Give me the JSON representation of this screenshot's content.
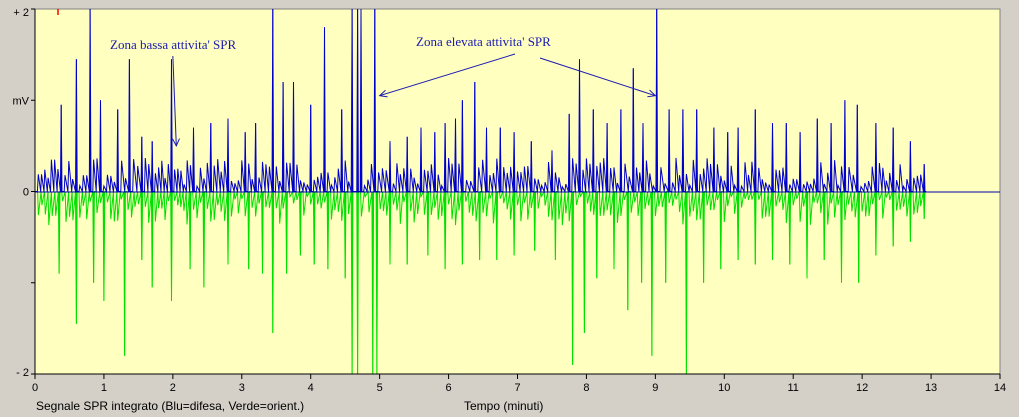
{
  "colors": {
    "window_bg": "#d4d0c8",
    "plot_bg": "#ffffc0",
    "blue_series": "#0000cc",
    "green_series": "#00e000",
    "annotation": "#1a1ab0",
    "axis": "#000000",
    "zero_line": "#0000aa",
    "marker": "#ff0000"
  },
  "footer": {
    "caption": "Segnale SPR integrato (Blu=difesa, Verde=orient.)"
  },
  "chart_data": {
    "type": "line",
    "xlabel": "Tempo (minuti)",
    "ylabel": "mV",
    "xlim": [
      0,
      14
    ],
    "ylim": [
      -2,
      2
    ],
    "x_ticks": [
      0,
      1,
      2,
      3,
      4,
      5,
      6,
      7,
      8,
      9,
      10,
      11,
      12,
      13,
      14
    ],
    "y_tick_labels": [
      {
        "value": 2,
        "label": "+ 2"
      },
      {
        "value": 1,
        "label": "mV"
      },
      {
        "value": 0,
        "label": "0"
      },
      {
        "value": -2,
        "label": "- 2"
      }
    ],
    "grid": false,
    "series": [
      {
        "name": "Blu=difesa",
        "color": "#0000cc",
        "direction": "positive",
        "x_range": [
          0,
          12.93
        ],
        "peaks": [
          {
            "x": 0.38,
            "y": 0.95
          },
          {
            "x": 0.6,
            "y": 1.45
          },
          {
            "x": 0.8,
            "y": 2.0
          },
          {
            "x": 0.95,
            "y": 1.0
          },
          {
            "x": 1.2,
            "y": 0.9
          },
          {
            "x": 1.37,
            "y": 1.45
          },
          {
            "x": 1.55,
            "y": 0.6
          },
          {
            "x": 1.7,
            "y": 0.55
          },
          {
            "x": 1.98,
            "y": 1.45
          },
          {
            "x": 2.3,
            "y": 0.7
          },
          {
            "x": 2.55,
            "y": 0.75
          },
          {
            "x": 2.8,
            "y": 0.8
          },
          {
            "x": 3.05,
            "y": 0.65
          },
          {
            "x": 3.2,
            "y": 0.75
          },
          {
            "x": 3.45,
            "y": 2.0
          },
          {
            "x": 3.6,
            "y": 1.2
          },
          {
            "x": 3.75,
            "y": 1.2
          },
          {
            "x": 4.0,
            "y": 0.95
          },
          {
            "x": 4.2,
            "y": 1.8
          },
          {
            "x": 4.45,
            "y": 0.9
          },
          {
            "x": 4.6,
            "y": 2.0
          },
          {
            "x": 4.68,
            "y": 2.0
          },
          {
            "x": 4.73,
            "y": 2.0
          },
          {
            "x": 4.93,
            "y": 2.0
          },
          {
            "x": 5.15,
            "y": 0.55
          },
          {
            "x": 5.4,
            "y": 0.6
          },
          {
            "x": 5.6,
            "y": 0.7
          },
          {
            "x": 5.8,
            "y": 0.65
          },
          {
            "x": 5.95,
            "y": 0.75
          },
          {
            "x": 6.1,
            "y": 0.8
          },
          {
            "x": 6.2,
            "y": 1.0
          },
          {
            "x": 6.38,
            "y": 1.2
          },
          {
            "x": 6.55,
            "y": 0.7
          },
          {
            "x": 6.75,
            "y": 0.7
          },
          {
            "x": 6.95,
            "y": 0.65
          },
          {
            "x": 7.2,
            "y": 0.55
          },
          {
            "x": 7.5,
            "y": 0.45
          },
          {
            "x": 7.75,
            "y": 0.85
          },
          {
            "x": 7.9,
            "y": 1.45
          },
          {
            "x": 8.1,
            "y": 0.9
          },
          {
            "x": 8.3,
            "y": 0.75
          },
          {
            "x": 8.5,
            "y": 0.9
          },
          {
            "x": 8.68,
            "y": 1.35
          },
          {
            "x": 8.82,
            "y": 0.75
          },
          {
            "x": 9.02,
            "y": 2.0
          },
          {
            "x": 9.2,
            "y": 0.9
          },
          {
            "x": 9.4,
            "y": 0.9
          },
          {
            "x": 9.6,
            "y": 0.9
          },
          {
            "x": 9.85,
            "y": 0.7
          },
          {
            "x": 10.05,
            "y": 0.65
          },
          {
            "x": 10.2,
            "y": 0.7
          },
          {
            "x": 10.45,
            "y": 0.9
          },
          {
            "x": 10.7,
            "y": 0.75
          },
          {
            "x": 10.9,
            "y": 0.75
          },
          {
            "x": 11.1,
            "y": 0.65
          },
          {
            "x": 11.35,
            "y": 0.8
          },
          {
            "x": 11.55,
            "y": 0.75
          },
          {
            "x": 11.75,
            "y": 1.0
          },
          {
            "x": 11.93,
            "y": 0.95
          },
          {
            "x": 12.2,
            "y": 0.75
          },
          {
            "x": 12.45,
            "y": 0.7
          },
          {
            "x": 12.7,
            "y": 0.55
          },
          {
            "x": 12.9,
            "y": 0.3
          }
        ]
      },
      {
        "name": "Verde=orient.",
        "color": "#00e000",
        "direction": "negative",
        "x_range": [
          0,
          12.93
        ],
        "peaks": [
          {
            "x": 0.35,
            "y": -0.9
          },
          {
            "x": 0.6,
            "y": -1.45
          },
          {
            "x": 0.85,
            "y": -1.0
          },
          {
            "x": 1.0,
            "y": -1.2
          },
          {
            "x": 1.3,
            "y": -1.8
          },
          {
            "x": 1.55,
            "y": -0.75
          },
          {
            "x": 1.7,
            "y": -1.05
          },
          {
            "x": 1.98,
            "y": -1.2
          },
          {
            "x": 2.25,
            "y": -0.85
          },
          {
            "x": 2.45,
            "y": -1.05
          },
          {
            "x": 2.8,
            "y": -0.8
          },
          {
            "x": 3.1,
            "y": -0.85
          },
          {
            "x": 3.3,
            "y": -0.9
          },
          {
            "x": 3.45,
            "y": -1.55
          },
          {
            "x": 3.65,
            "y": -0.9
          },
          {
            "x": 3.85,
            "y": -0.7
          },
          {
            "x": 4.05,
            "y": -0.8
          },
          {
            "x": 4.25,
            "y": -0.85
          },
          {
            "x": 4.5,
            "y": -0.95
          },
          {
            "x": 4.6,
            "y": -2.0
          },
          {
            "x": 4.68,
            "y": -2.0
          },
          {
            "x": 4.9,
            "y": -2.0
          },
          {
            "x": 4.96,
            "y": -2.0
          },
          {
            "x": 5.15,
            "y": -0.8
          },
          {
            "x": 5.4,
            "y": -0.8
          },
          {
            "x": 5.7,
            "y": -0.7
          },
          {
            "x": 5.95,
            "y": -0.85
          },
          {
            "x": 6.2,
            "y": -0.8
          },
          {
            "x": 6.45,
            "y": -0.75
          },
          {
            "x": 6.7,
            "y": -0.75
          },
          {
            "x": 6.95,
            "y": -0.7
          },
          {
            "x": 7.25,
            "y": -0.65
          },
          {
            "x": 7.55,
            "y": -0.75
          },
          {
            "x": 7.8,
            "y": -1.9
          },
          {
            "x": 7.97,
            "y": -1.55
          },
          {
            "x": 8.15,
            "y": -0.95
          },
          {
            "x": 8.4,
            "y": -0.85
          },
          {
            "x": 8.6,
            "y": -1.3
          },
          {
            "x": 8.8,
            "y": -1.0
          },
          {
            "x": 8.95,
            "y": -1.8
          },
          {
            "x": 9.15,
            "y": -1.0
          },
          {
            "x": 9.45,
            "y": -2.0
          },
          {
            "x": 9.7,
            "y": -1.0
          },
          {
            "x": 9.95,
            "y": -0.85
          },
          {
            "x": 10.2,
            "y": -0.75
          },
          {
            "x": 10.45,
            "y": -0.8
          },
          {
            "x": 10.7,
            "y": -0.75
          },
          {
            "x": 10.95,
            "y": -0.8
          },
          {
            "x": 11.2,
            "y": -0.95
          },
          {
            "x": 11.45,
            "y": -0.75
          },
          {
            "x": 11.7,
            "y": -1.0
          },
          {
            "x": 11.95,
            "y": -1.0
          },
          {
            "x": 12.2,
            "y": -0.7
          },
          {
            "x": 12.45,
            "y": -0.6
          },
          {
            "x": 12.7,
            "y": -0.55
          },
          {
            "x": 12.9,
            "y": -0.3
          }
        ]
      }
    ],
    "annotations": [
      {
        "text": "Zona bassa attivita' SPR",
        "target": {
          "x": 2.05,
          "y": 0.5
        }
      },
      {
        "text": "Zona elevata attivita' SPR",
        "targets": [
          {
            "x": 5.0,
            "y": 1.05
          },
          {
            "x": 9.0,
            "y": 1.05
          }
        ]
      }
    ]
  }
}
